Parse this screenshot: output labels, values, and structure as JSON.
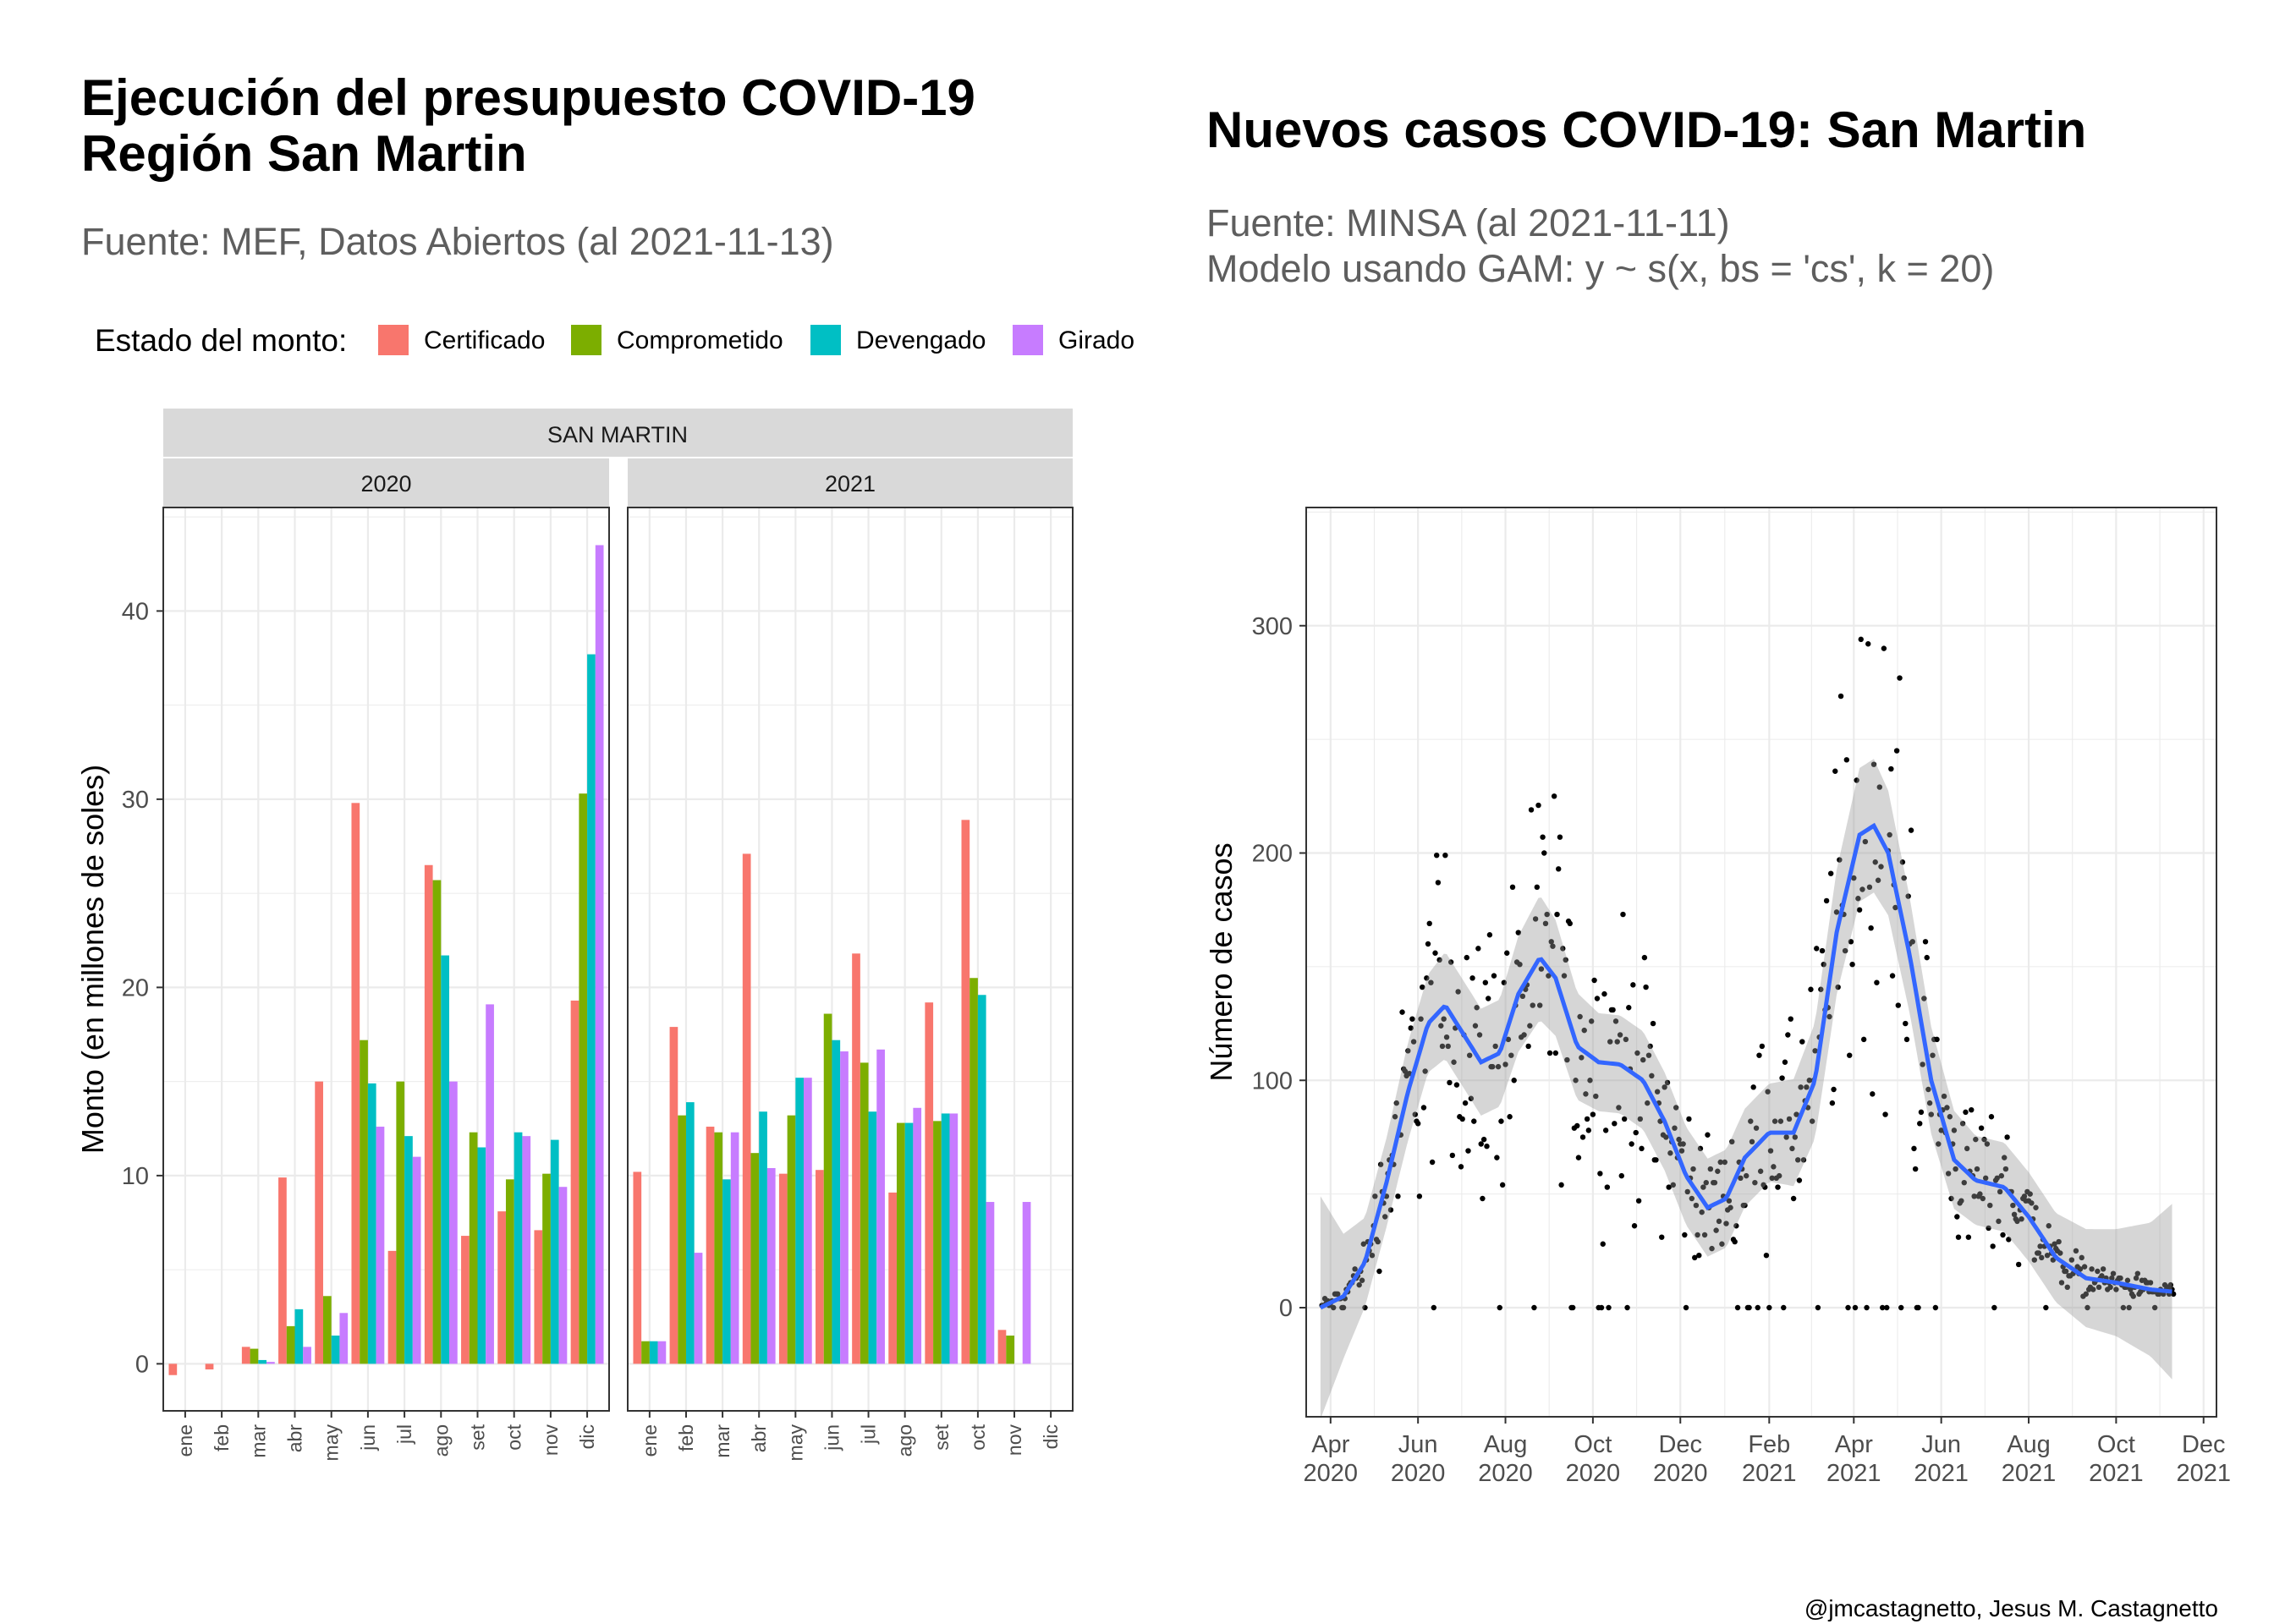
{
  "left": {
    "title_line1": "Ejecución del presupuesto COVID-19",
    "title_line2": "Región San Martin",
    "subtitle": "Fuente: MEF, Datos Abiertos (al 2021-11-13)",
    "legend_title": "Estado del monto:",
    "strip_region": "SAN MARTIN",
    "strip_years": [
      "2020",
      "2021"
    ],
    "ylabel": "Monto (en millones de soles)"
  },
  "right": {
    "title": "Nuevos casos COVID-19: San Martin",
    "subtitle_line1": "Fuente: MINSA (al 2021-11-11)",
    "subtitle_line2": "Modelo usando GAM: y ~ s(x, bs = 'cs', k = 20)",
    "ylabel": "Número de casos"
  },
  "caption": "@jmcastagnetto, Jesus M. Castagnetto",
  "chart_data": [
    {
      "type": "bar",
      "facet_title": "SAN MARTIN",
      "panels": [
        "2020",
        "2021"
      ],
      "categories": [
        "ene",
        "feb",
        "mar",
        "abr",
        "may",
        "jun",
        "jul",
        "ago",
        "set",
        "oct",
        "nov",
        "dic"
      ],
      "ylabel": "Monto (en millones de soles)",
      "ylim": [
        -2.5,
        45.5
      ],
      "yticks": [
        0,
        10,
        20,
        30,
        40
      ],
      "legend_placement": "top",
      "series_names": [
        "Certificado",
        "Comprometido",
        "Devengado",
        "Girado"
      ],
      "colors": [
        "#F8766D",
        "#7CAE00",
        "#00BFC4",
        "#C77CFF"
      ],
      "values": {
        "2020": {
          "Certificado": [
            -0.6,
            -0.3,
            0.9,
            9.9,
            15.0,
            29.8,
            6.0,
            26.5,
            6.8,
            8.1,
            7.1,
            19.3
          ],
          "Comprometido": [
            0,
            0,
            0.8,
            2.0,
            3.6,
            17.2,
            15.0,
            25.7,
            12.3,
            9.8,
            10.1,
            30.3
          ],
          "Devengado": [
            0,
            0,
            0.2,
            2.9,
            1.5,
            14.9,
            12.1,
            21.7,
            11.5,
            12.3,
            11.9,
            37.7
          ],
          "Girado": [
            0,
            0,
            0.1,
            0.9,
            2.7,
            12.6,
            11.0,
            15.0,
            19.1,
            12.1,
            9.4,
            43.5
          ]
        },
        "2021": {
          "Certificado": [
            10.2,
            17.9,
            12.6,
            27.1,
            10.1,
            10.3,
            21.8,
            9.1,
            19.2,
            28.9,
            1.8,
            0
          ],
          "Comprometido": [
            1.2,
            13.2,
            12.3,
            11.2,
            13.2,
            18.6,
            16.0,
            12.8,
            12.9,
            20.5,
            1.5,
            0
          ],
          "Devengado": [
            1.2,
            13.9,
            9.8,
            13.4,
            15.2,
            17.2,
            13.4,
            12.8,
            13.3,
            19.6,
            0,
            0
          ],
          "Girado": [
            1.2,
            5.9,
            12.3,
            10.4,
            15.2,
            16.6,
            16.7,
            13.6,
            13.3,
            8.6,
            8.6,
            0
          ]
        }
      }
    },
    {
      "type": "scatter",
      "title": "Nuevos casos COVID-19: San Martin",
      "ylabel": "Número de casos",
      "xlim": [
        "2020-03-15",
        "2021-12-10"
      ],
      "ylim": [
        -48,
        352
      ],
      "x_ticks": [
        {
          "date": "2020-04-01",
          "label1": "Apr",
          "label2": "2020"
        },
        {
          "date": "2020-06-01",
          "label1": "Jun",
          "label2": "2020"
        },
        {
          "date": "2020-08-01",
          "label1": "Aug",
          "label2": "2020"
        },
        {
          "date": "2020-10-01",
          "label1": "Oct",
          "label2": "2020"
        },
        {
          "date": "2020-12-01",
          "label1": "Dec",
          "label2": "2020"
        },
        {
          "date": "2021-02-01",
          "label1": "Feb",
          "label2": "2021"
        },
        {
          "date": "2021-04-01",
          "label1": "Apr",
          "label2": "2021"
        },
        {
          "date": "2021-06-01",
          "label1": "Jun",
          "label2": "2021"
        },
        {
          "date": "2021-08-01",
          "label1": "Aug",
          "label2": "2021"
        },
        {
          "date": "2021-10-01",
          "label1": "Oct",
          "label2": "2021"
        },
        {
          "date": "2021-12-01",
          "label1": "Dec",
          "label2": "2021"
        }
      ],
      "yticks": [
        0,
        100,
        200,
        300
      ],
      "smooth": [
        {
          "date": "2020-03-25",
          "y": 0,
          "se": 25
        },
        {
          "date": "2020-04-10",
          "y": 5,
          "se": 14
        },
        {
          "date": "2020-04-25",
          "y": 20,
          "se": 10
        },
        {
          "date": "2020-05-10",
          "y": 55,
          "se": 10
        },
        {
          "date": "2020-05-25",
          "y": 95,
          "se": 11
        },
        {
          "date": "2020-06-08",
          "y": 125,
          "se": 11
        },
        {
          "date": "2020-06-20",
          "y": 133,
          "se": 12
        },
        {
          "date": "2020-07-01",
          "y": 122,
          "se": 12
        },
        {
          "date": "2020-07-15",
          "y": 108,
          "se": 12
        },
        {
          "date": "2020-07-28",
          "y": 112,
          "se": 12
        },
        {
          "date": "2020-08-10",
          "y": 138,
          "se": 13
        },
        {
          "date": "2020-08-25",
          "y": 154,
          "se": 14
        },
        {
          "date": "2020-09-05",
          "y": 145,
          "se": 13
        },
        {
          "date": "2020-09-20",
          "y": 115,
          "se": 12
        },
        {
          "date": "2020-10-05",
          "y": 108,
          "se": 11
        },
        {
          "date": "2020-10-20",
          "y": 107,
          "se": 11
        },
        {
          "date": "2020-11-05",
          "y": 100,
          "se": 11
        },
        {
          "date": "2020-11-20",
          "y": 82,
          "se": 11
        },
        {
          "date": "2020-12-05",
          "y": 58,
          "se": 11
        },
        {
          "date": "2020-12-20",
          "y": 44,
          "se": 11
        },
        {
          "date": "2021-01-02",
          "y": 48,
          "se": 11
        },
        {
          "date": "2021-01-15",
          "y": 66,
          "se": 11
        },
        {
          "date": "2021-02-01",
          "y": 77,
          "se": 11
        },
        {
          "date": "2021-02-18",
          "y": 77,
          "se": 12
        },
        {
          "date": "2021-03-05",
          "y": 100,
          "se": 13
        },
        {
          "date": "2021-03-20",
          "y": 165,
          "se": 14
        },
        {
          "date": "2021-04-05",
          "y": 208,
          "se": 15
        },
        {
          "date": "2021-04-15",
          "y": 212,
          "se": 15
        },
        {
          "date": "2021-04-25",
          "y": 200,
          "se": 14
        },
        {
          "date": "2021-05-10",
          "y": 155,
          "se": 13
        },
        {
          "date": "2021-05-25",
          "y": 100,
          "se": 12
        },
        {
          "date": "2021-06-10",
          "y": 65,
          "se": 11
        },
        {
          "date": "2021-06-25",
          "y": 56,
          "se": 10
        },
        {
          "date": "2021-07-15",
          "y": 53,
          "se": 10
        },
        {
          "date": "2021-08-01",
          "y": 40,
          "se": 10
        },
        {
          "date": "2021-08-20",
          "y": 22,
          "se": 10
        },
        {
          "date": "2021-09-10",
          "y": 13,
          "se": 11
        },
        {
          "date": "2021-10-01",
          "y": 11,
          "se": 12
        },
        {
          "date": "2021-10-25",
          "y": 8,
          "se": 15
        },
        {
          "date": "2021-11-10",
          "y": 7,
          "se": 20
        }
      ],
      "smooth_color": "#3366FF",
      "points_note_series": "daily new cases"
    }
  ]
}
